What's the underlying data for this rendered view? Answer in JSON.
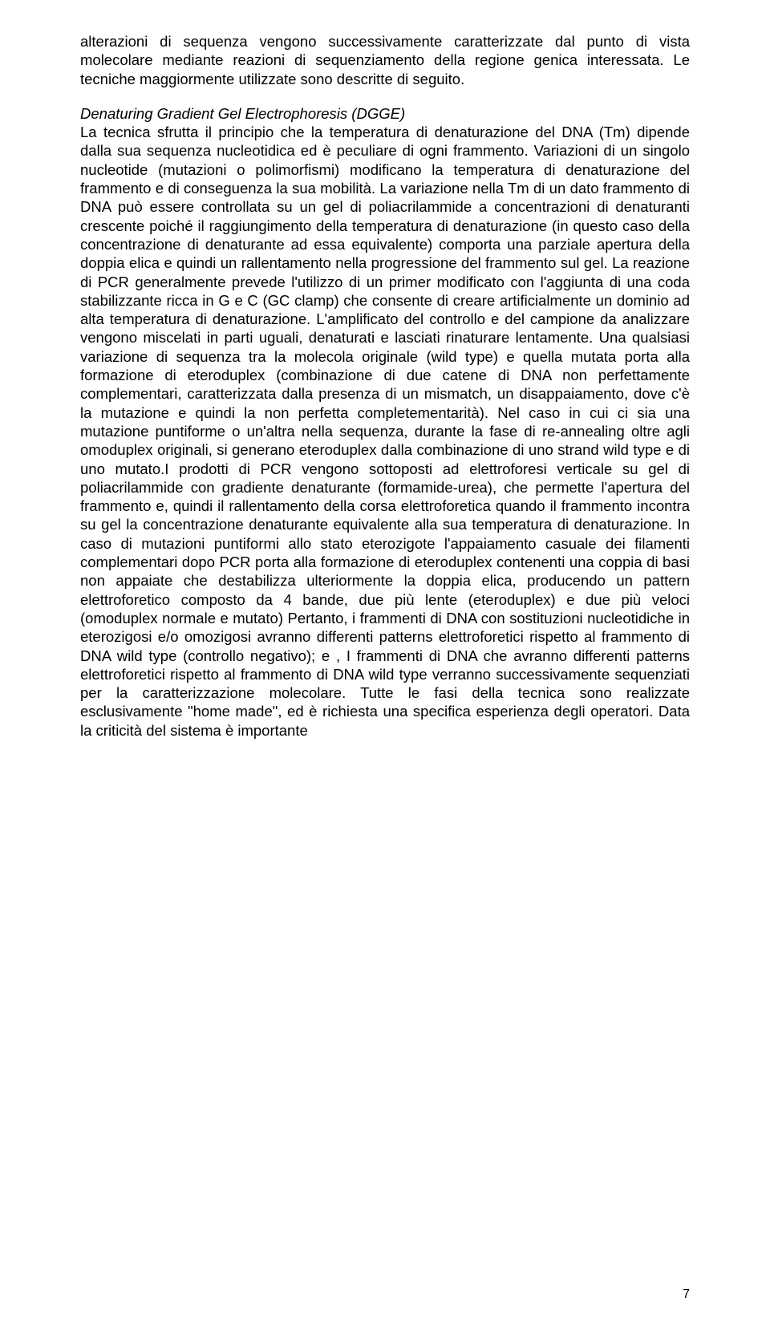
{
  "paragraph1": "alterazioni di sequenza vengono successivamente caratterizzate dal punto di vista molecolare mediante reazioni di sequenziamento della regione genica interessata. Le tecniche maggiormente utilizzate sono descritte di seguito.",
  "heading": "Denaturing Gradient Gel Electrophoresis (DGGE)",
  "paragraph2": "La tecnica sfrutta il principio che la temperatura di denaturazione del DNA (Tm) dipende dalla sua sequenza nucleotidica ed è peculiare di ogni frammento. Variazioni di un singolo nucleotide (mutazioni o polimorfismi) modificano la temperatura di denaturazione del frammento e di conseguenza la sua mobilità. La variazione nella Tm di un dato frammento di DNA può essere controllata su un gel di poliacrilammide a concentrazioni di denaturanti crescente poiché il raggiungimento della temperatura di denaturazione (in questo caso della concentrazione di denaturante ad essa equivalente) comporta una parziale apertura della doppia elica e quindi un rallentamento nella progressione del frammento sul gel. La reazione di PCR generalmente prevede l'utilizzo di un primer modificato con l'aggiunta di una coda stabilizzante ricca in G e C (GC clamp) che consente di creare artificialmente un dominio ad alta temperatura di denaturazione. L'amplificato del controllo e del campione da analizzare vengono miscelati in parti uguali, denaturati e lasciati rinaturare lentamente. Una qualsiasi variazione di sequenza tra la molecola originale (wild type) e quella mutata porta alla formazione di eteroduplex (combinazione di due catene di DNA non perfettamente complementari, caratterizzata dalla presenza di un mismatch, un disappaiamento, dove c'è la mutazione e quindi la non perfetta completementarità). Nel caso in cui ci sia una mutazione puntiforme o un'altra nella sequenza, durante la fase di re-annealing oltre agli omoduplex originali, si generano eteroduplex dalla combinazione di uno strand wild type e di uno mutato.I prodotti di PCR vengono sottoposti ad elettroforesi verticale su gel di poliacrilammide con gradiente denaturante (formamide-urea), che permette l'apertura del frammento e, quindi il rallentamento della corsa elettroforetica quando il frammento incontra su gel la concentrazione denaturante equivalente alla sua temperatura di denaturazione. In caso di mutazioni puntiformi allo stato eterozigote l'appaiamento casuale dei filamenti complementari dopo PCR porta alla formazione di eteroduplex contenenti una coppia di basi non appaiate che destabilizza ulteriormente la doppia elica, producendo un pattern elettroforetico composto da 4 bande, due più lente (eteroduplex) e due più veloci (omoduplex normale e mutato) Pertanto, i frammenti di DNA con sostituzioni nucleotidiche in eterozigosi e/o omozigosi avranno differenti patterns elettroforetici rispetto al frammento di DNA wild type (controllo negativo); e , I frammenti di DNA che avranno differenti patterns elettroforetici rispetto al frammento di DNA wild type verranno successivamente sequenziati per la caratterizzazione molecolare. Tutte le fasi della tecnica sono realizzate esclusivamente \"home made\", ed è richiesta una specifica esperienza degli operatori. Data la criticità del sistema è importante",
  "pageNumber": "7"
}
